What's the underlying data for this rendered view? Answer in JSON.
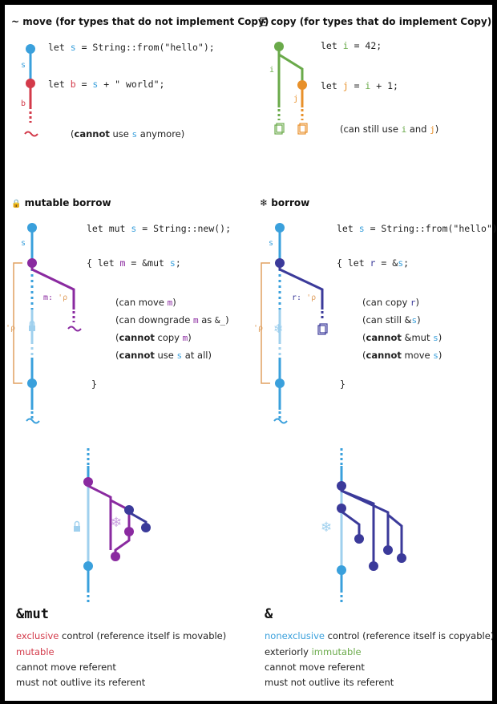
{
  "move": {
    "icon": "~",
    "title": "move (for types that do not implement Copy)",
    "code1": [
      "let ",
      "s",
      " = String::from(\"hello\");"
    ],
    "code2": [
      "let ",
      "b",
      " = ",
      "s",
      " + \" world\";"
    ],
    "label_s": "s",
    "label_b": "b",
    "note_bold": "cannot",
    "note_pre": "(",
    "note_mid": " use ",
    "note_var": "s",
    "note_post": " anymore)"
  },
  "copy": {
    "icon": "⎘",
    "title": "copy (for types that do implement Copy)",
    "code1": [
      "let ",
      "i",
      " = 42;"
    ],
    "code2": [
      "let ",
      "j",
      " = ",
      "i",
      " + 1;"
    ],
    "label_i": "i",
    "label_j": "j",
    "note_pre": "(can still use ",
    "note_i": "i",
    "note_and": " and ",
    "note_j": "j",
    "note_post": ")"
  },
  "mutable_borrow": {
    "icon": "🔒",
    "title": "mutable borrow",
    "code1": [
      "let mut ",
      "s",
      " = String::new();"
    ],
    "code2": [
      "{ let ",
      "m",
      " = &mut ",
      "s",
      ";"
    ],
    "code3": "}",
    "label_s": "s",
    "label_m": "m: ",
    "label_lifetime": "'ρ",
    "label_lifetime_side": "'ρ",
    "notes": [
      {
        "pre": "(can move ",
        "var": "m",
        "post": ")"
      },
      {
        "pre": "(can downgrade ",
        "var": "m",
        "mid": " as ",
        "code": "&_",
        "post": ")"
      },
      {
        "bold": "cannot",
        "pre": "(",
        "mid": " copy ",
        "var": "m",
        "post": ")"
      },
      {
        "bold": "cannot",
        "pre": "(",
        "mid": " use ",
        "var": "s",
        "post": " at all)"
      }
    ]
  },
  "borrow": {
    "icon": "❄",
    "title": "borrow",
    "code1": [
      "let ",
      "s",
      " = String::from(\"hello\");"
    ],
    "code2": [
      "{ let ",
      "r",
      " = &",
      "s",
      ";"
    ],
    "code3": "}",
    "label_s": "s",
    "label_r": "r: ",
    "label_lifetime": "'ρ",
    "label_lifetime_side": "'ρ",
    "notes": [
      {
        "pre": "(can copy ",
        "var": "r",
        "post": ")"
      },
      {
        "pre": "(can still &",
        "var": "s",
        "post": ")"
      },
      {
        "bold": "cannot",
        "pre": "(",
        "mid": " &mut ",
        "var": "s",
        "post": ")"
      },
      {
        "bold": "cannot",
        "pre": "(",
        "mid": " move ",
        "var": "s",
        "post": ")"
      }
    ]
  },
  "mut_summary": {
    "title": "&mut",
    "line1_colored": "exclusive",
    "line1_rest": " control (reference itself is movable)",
    "line2": "mutable",
    "line3": "cannot move referent",
    "line4": "must not outlive its referent"
  },
  "shared_summary": {
    "title": "&",
    "line1_colored": "nonexclusive",
    "line1_rest": " control (reference itself is copyable)",
    "line2_pre": "exteriorly ",
    "line2_colored": "immutable",
    "line3": "cannot move referent",
    "line4": "must not outlive its referent"
  },
  "colors": {
    "blue": "#3aa0dc",
    "lightblue": "#9fd0ee",
    "red": "#d33a4a",
    "green": "#6aaa4a",
    "orange": "#e8902a",
    "purple": "#8a2aa0",
    "navy": "#3b3a9a",
    "tan": "#e0a060"
  }
}
